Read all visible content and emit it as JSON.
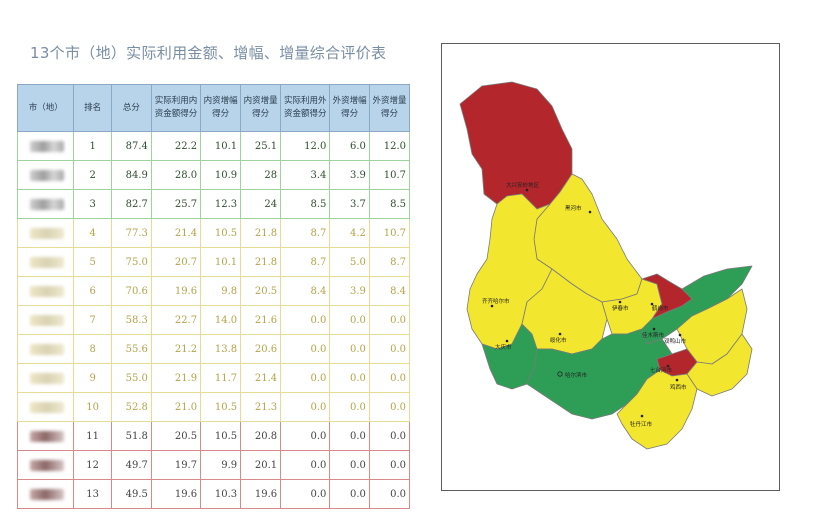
{
  "title": "13个市（地）实际利用金额、增幅、增量综合评价表",
  "table": {
    "headers": [
      "市（地）",
      "排名",
      "总分",
      "实际利用内资金额得分",
      "内资增幅得分",
      "内资增量得分",
      "实际利用外资金额得分",
      "外资增幅得分",
      "外资增量得分"
    ],
    "rows": [
      {
        "rank": "1",
        "total": "87.4",
        "c1": "22.2",
        "c2": "10.1",
        "c3": "25.1",
        "c4": "12.0",
        "c5": "6.0",
        "c6": "12.0",
        "tier": "green"
      },
      {
        "rank": "2",
        "total": "84.9",
        "c1": "28.0",
        "c2": "10.9",
        "c3": "28",
        "c4": "3.4",
        "c5": "3.9",
        "c6": "10.7",
        "tier": "green"
      },
      {
        "rank": "3",
        "total": "82.7",
        "c1": "25.7",
        "c2": "12.3",
        "c3": "24",
        "c4": "8.5",
        "c5": "3.7",
        "c6": "8.5",
        "tier": "green"
      },
      {
        "rank": "4",
        "total": "77.3",
        "c1": "21.4",
        "c2": "10.5",
        "c3": "21.8",
        "c4": "8.7",
        "c5": "4.2",
        "c6": "10.7",
        "tier": "yellow"
      },
      {
        "rank": "5",
        "total": "75.0",
        "c1": "20.7",
        "c2": "10.1",
        "c3": "21.8",
        "c4": "8.7",
        "c5": "5.0",
        "c6": "8.7",
        "tier": "yellow"
      },
      {
        "rank": "6",
        "total": "70.6",
        "c1": "19.6",
        "c2": "9.8",
        "c3": "20.5",
        "c4": "8.4",
        "c5": "3.9",
        "c6": "8.4",
        "tier": "yellow"
      },
      {
        "rank": "7",
        "total": "58.3",
        "c1": "22.7",
        "c2": "14.0",
        "c3": "21.6",
        "c4": "0.0",
        "c5": "0.0",
        "c6": "0.0",
        "tier": "yellow"
      },
      {
        "rank": "8",
        "total": "55.6",
        "c1": "21.2",
        "c2": "13.8",
        "c3": "20.6",
        "c4": "0.0",
        "c5": "0.0",
        "c6": "0.0",
        "tier": "yellow"
      },
      {
        "rank": "9",
        "total": "55.0",
        "c1": "21.9",
        "c2": "11.7",
        "c3": "21.4",
        "c4": "0.0",
        "c5": "0.0",
        "c6": "0.0",
        "tier": "yellow"
      },
      {
        "rank": "10",
        "total": "52.8",
        "c1": "21.0",
        "c2": "10.5",
        "c3": "21.3",
        "c4": "0.0",
        "c5": "0.0",
        "c6": "0.0",
        "tier": "yellow"
      },
      {
        "rank": "11",
        "total": "51.8",
        "c1": "20.5",
        "c2": "10.5",
        "c3": "20.8",
        "c4": "0.0",
        "c5": "0.0",
        "c6": "0.0",
        "tier": "red"
      },
      {
        "rank": "12",
        "total": "49.7",
        "c1": "19.7",
        "c2": "9.9",
        "c3": "20.1",
        "c4": "0.0",
        "c5": "0.0",
        "c6": "0.0",
        "tier": "red"
      },
      {
        "rank": "13",
        "total": "49.5",
        "c1": "19.6",
        "c2": "10.3",
        "c3": "19.6",
        "c4": "0.0",
        "c5": "0.0",
        "c6": "0.0",
        "tier": "red"
      }
    ]
  },
  "map": {
    "colors": {
      "green": "#2e9e57",
      "yellow": "#f2e62e",
      "red": "#b3262c",
      "border": "#7a7a7a"
    },
    "labels": {
      "daxinganling": "大兴安岭地区",
      "heihe": "黑河市",
      "qiqihar": "齐齐哈尔市",
      "yichun": "伊春市",
      "hegang": "鹤岗市",
      "jiamusi": "佳木斯市",
      "shuangyashan": "双鸭山市",
      "suihua": "绥化市",
      "daqing": "大庆市",
      "qitaihe": "七台河市",
      "haerbin": "哈尔滨市",
      "jixi": "鸡西市",
      "mudanjiang": "牡丹江市"
    }
  }
}
